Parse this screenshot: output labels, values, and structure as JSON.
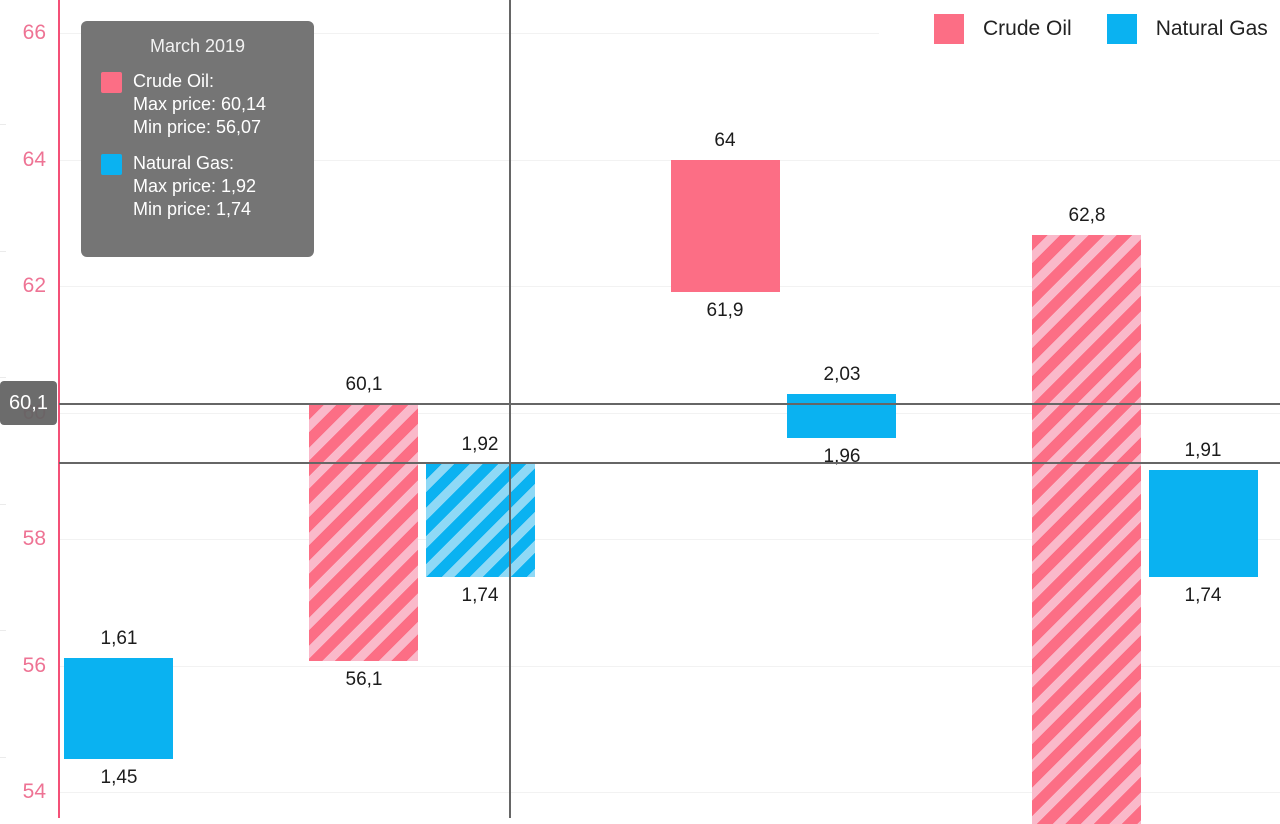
{
  "legend": {
    "items": [
      {
        "label": "Crude Oil",
        "color": "#FC6E85"
      },
      {
        "label": "Natural Gas",
        "color": "#0AB2F1"
      }
    ]
  },
  "tooltip": {
    "title": "March 2019",
    "sections": [
      {
        "series": "Crude Oil:",
        "max_line": "Max price: 60,14",
        "min_line": "Min price: 56,07",
        "color": "#FC6E85"
      },
      {
        "series": "Natural Gas:",
        "max_line": "Max price: 1,92",
        "min_line": "Min price: 1,74",
        "color": "#0AB2F1"
      }
    ]
  },
  "y_axis": {
    "tick_labels": [
      "66",
      "64",
      "62",
      "60",
      "58",
      "56",
      "54"
    ],
    "label_color": "#EE7394",
    "axis_line_color": "#F45077"
  },
  "crosshair": {
    "y_badge_label": "60,1",
    "color": "#666666"
  },
  "colors": {
    "crude_oil": "#FC6E85",
    "crude_oil_hatch_light": "#FAB9CA",
    "natural_gas": "#0AB2F1",
    "natural_gas_hatch_light": "#8FD9F6",
    "gridline": "#F2F2F2",
    "tooltip_bg": "#757575"
  },
  "chart_data": {
    "type": "bar",
    "subtype": "columnrange (floating min-max bars, dual hidden gas axis)",
    "title": "",
    "xlabel": "",
    "ylabel": "",
    "legend_position": "top-right",
    "grid": true,
    "oil_axis": {
      "ticks": [
        66,
        64,
        62,
        60,
        58,
        56,
        54
      ],
      "visible_range_approx": [
        53.5,
        66.5
      ],
      "side": "left"
    },
    "gas_axis": {
      "visible_range_approx": [
        1.35,
        2.65
      ],
      "hidden": true
    },
    "hovered_point": {
      "month": "March 2019",
      "crude_oil": {
        "max": 60.14,
        "min": 56.07
      },
      "natural_gas": {
        "max": 1.92,
        "min": 1.74
      }
    },
    "crosshair": {
      "oil_value": 60.1
    },
    "series": [
      {
        "name": "Crude Oil",
        "color": "#FC6E85",
        "points": [
          {
            "group": 0,
            "visible": false
          },
          {
            "group": 1,
            "min": 56.07,
            "max": 60.14,
            "label_max": "60,1",
            "label_min": "56,1",
            "hatched": true
          },
          {
            "group": 2,
            "min": 61.9,
            "max": 64,
            "label_max": "64",
            "label_min": "61,9",
            "hatched": false
          },
          {
            "group": 3,
            "min": null,
            "max": 62.8,
            "label_max": "62,8",
            "label_min": null,
            "hatched": true,
            "clipped_bottom": true
          }
        ]
      },
      {
        "name": "Natural Gas",
        "color": "#0AB2F1",
        "points": [
          {
            "group": 0,
            "min": 1.45,
            "max": 1.61,
            "label_max": "1,61",
            "label_min": "1,45",
            "hatched": false
          },
          {
            "group": 1,
            "min": 1.74,
            "max": 1.92,
            "label_max": "1,92",
            "label_min": "1,74",
            "hatched": true
          },
          {
            "group": 2,
            "min": 1.96,
            "max": 2.03,
            "label_max": "2,03",
            "label_min": "1,96",
            "hatched": false
          },
          {
            "group": 3,
            "min": 1.74,
            "max": 1.91,
            "label_max": "1,91",
            "label_min": "1,74",
            "hatched": false
          }
        ]
      }
    ]
  }
}
